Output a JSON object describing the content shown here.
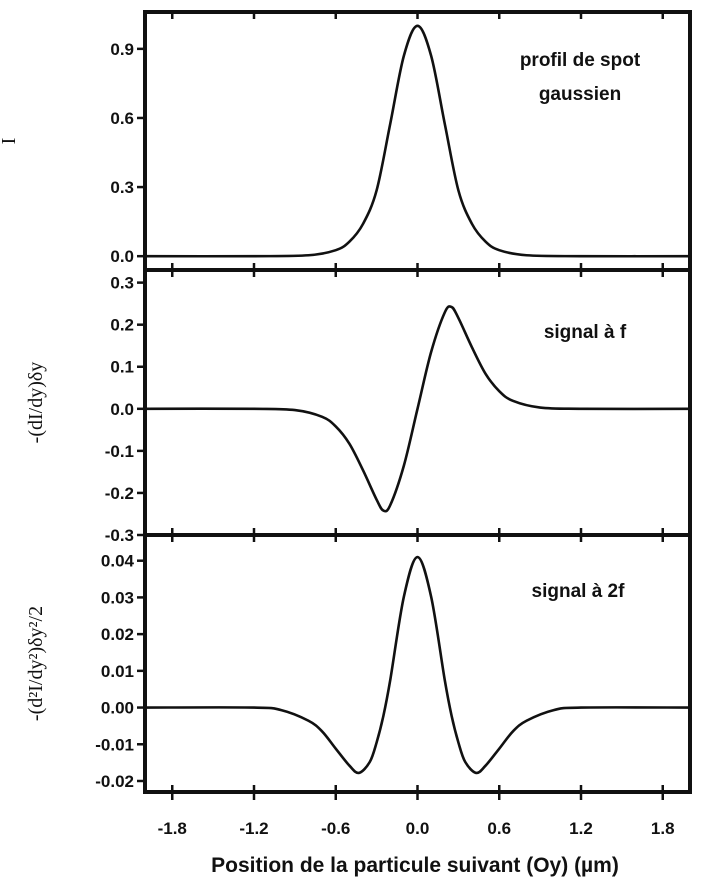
{
  "chart_data": [
    {
      "type": "line",
      "ylabel": "I",
      "annotation_lines": [
        "profil de spot",
        "gaussien"
      ],
      "ylim": [
        -0.06,
        1.06
      ],
      "yticks": [
        0.0,
        0.3,
        0.6,
        0.9
      ],
      "ytick_labels": [
        "0.0",
        "0.3",
        "0.6",
        "0.9"
      ],
      "xlim": [
        -2.0,
        2.0
      ],
      "series": [
        {
          "x": [
            -2.0,
            -1.2,
            -0.8,
            -0.6,
            -0.5,
            -0.4,
            -0.3,
            -0.2,
            -0.1,
            0.0,
            0.1,
            0.2,
            0.3,
            0.4,
            0.5,
            0.6,
            0.8,
            1.2,
            2.0
          ],
          "y": [
            0.0,
            0.0,
            0.004,
            0.026,
            0.063,
            0.14,
            0.286,
            0.575,
            0.87,
            1.0,
            0.87,
            0.575,
            0.286,
            0.14,
            0.063,
            0.026,
            0.004,
            0.0,
            0.0
          ]
        }
      ]
    },
    {
      "type": "line",
      "ylabel": "-(dI/dy)δy",
      "annotation_lines": [
        "signal à f"
      ],
      "ylim": [
        -0.3,
        0.33
      ],
      "yticks": [
        -0.3,
        -0.2,
        -0.1,
        0.0,
        0.1,
        0.2,
        0.3
      ],
      "ytick_labels": [
        "-0.3",
        "-0.2",
        "-0.1",
        "0.0",
        "0.1",
        "0.2",
        "0.3"
      ],
      "xlim": [
        -2.0,
        2.0
      ],
      "series": [
        {
          "x": [
            -2.0,
            -1.2,
            -0.9,
            -0.7,
            -0.6,
            -0.5,
            -0.4,
            -0.3,
            -0.25,
            -0.2,
            -0.1,
            0.0,
            0.1,
            0.2,
            0.25,
            0.3,
            0.4,
            0.5,
            0.6,
            0.7,
            0.9,
            1.2,
            2.0
          ],
          "y": [
            0.0,
            0.0,
            -0.003,
            -0.019,
            -0.042,
            -0.083,
            -0.146,
            -0.216,
            -0.242,
            -0.229,
            -0.135,
            0.0,
            0.135,
            0.229,
            0.242,
            0.216,
            0.146,
            0.083,
            0.042,
            0.019,
            0.003,
            0.0,
            0.0
          ]
        }
      ]
    },
    {
      "type": "line",
      "ylabel": "-(d²I/dy²)δy²/2",
      "annotation_lines": [
        "signal à 2f"
      ],
      "ylim": [
        -0.023,
        0.047
      ],
      "yticks": [
        -0.02,
        -0.01,
        0.0,
        0.01,
        0.02,
        0.03,
        0.04
      ],
      "ytick_labels": [
        "-0.02",
        "-0.01",
        "0.00",
        "0.01",
        "0.02",
        "0.03",
        "0.04"
      ],
      "xlim": [
        -2.0,
        2.0
      ],
      "xticks": [
        -1.8,
        -1.2,
        -0.6,
        0.0,
        0.6,
        1.2,
        1.8
      ],
      "xtick_labels": [
        "-1.8",
        "-1.2",
        "-0.6",
        "0.0",
        "0.6",
        "1.2",
        "1.8"
      ],
      "xlabel": "Position de la particule suivant (Oy) (µm)",
      "series": [
        {
          "x": [
            -2.0,
            -1.2,
            -1.0,
            -0.8,
            -0.7,
            -0.6,
            -0.5,
            -0.43,
            -0.35,
            -0.3,
            -0.25,
            -0.2,
            -0.1,
            0.0,
            0.1,
            0.2,
            0.25,
            0.3,
            0.35,
            0.43,
            0.5,
            0.6,
            0.7,
            0.8,
            1.0,
            1.2,
            2.0
          ],
          "y": [
            0.0,
            0.0,
            -0.0007,
            -0.0036,
            -0.0065,
            -0.0112,
            -0.0158,
            -0.0178,
            -0.0148,
            -0.0095,
            -0.0022,
            0.0075,
            0.0302,
            0.041,
            0.0302,
            0.0075,
            -0.0022,
            -0.0095,
            -0.0148,
            -0.0178,
            -0.0158,
            -0.0112,
            -0.0065,
            -0.0036,
            -0.0007,
            0.0,
            0.0
          ]
        }
      ]
    }
  ]
}
